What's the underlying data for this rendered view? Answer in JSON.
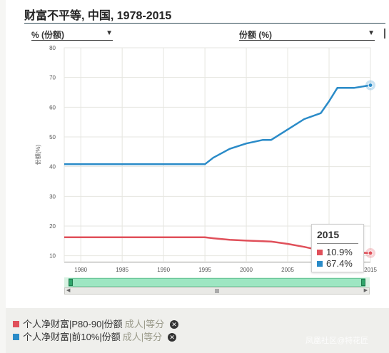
{
  "title": "财富不平等, 中国, 1978-2015",
  "selectors": {
    "left": "% (份额)",
    "right": "份额 (%)"
  },
  "tooltip": {
    "year": "2015",
    "rows": [
      {
        "value": "10.9%",
        "color": "#e0505a"
      },
      {
        "value": "67.4%",
        "color": "#2a8bc8"
      }
    ]
  },
  "legend": [
    {
      "label": "个人净财富|P80-90|份额",
      "unit": "成人|等分",
      "color": "#e0505a"
    },
    {
      "label": "个人净财富|前10%|份额",
      "unit": "成人|等分",
      "color": "#2a8bc8"
    }
  ],
  "watermark": "凤凰社区@特花匠",
  "chart_data": {
    "type": "line",
    "ylabel": "份额(%)",
    "ylim": [
      10,
      80
    ],
    "xlim": [
      1978,
      2015
    ],
    "yticks": [
      10,
      20,
      30,
      40,
      50,
      60,
      70,
      80
    ],
    "xticks": [
      1980,
      1985,
      1990,
      1995,
      2000,
      2005,
      2010,
      2015
    ],
    "grid": true,
    "series": [
      {
        "name": "个人净财富|P80-90|份额",
        "color": "#e0505a",
        "x": [
          1978,
          1995,
          1996,
          1998,
          2000,
          2002,
          2003,
          2005,
          2007,
          2009,
          2011,
          2013,
          2015
        ],
        "y": [
          16.2,
          16.2,
          15.9,
          15.4,
          15.1,
          14.9,
          14.8,
          14.0,
          13.0,
          11.8,
          11.3,
          11.1,
          10.9
        ]
      },
      {
        "name": "个人净财富|前10%|份额",
        "color": "#2a8bc8",
        "x": [
          1978,
          1995,
          1996,
          1998,
          2000,
          2002,
          2003,
          2005,
          2007,
          2009,
          2010,
          2011,
          2013,
          2015
        ],
        "y": [
          40.8,
          40.8,
          43.0,
          46.0,
          47.8,
          49.0,
          49.0,
          52.5,
          56.0,
          58.0,
          62.0,
          66.5,
          66.5,
          67.4
        ]
      }
    ],
    "highlight": {
      "x": 2015
    }
  }
}
